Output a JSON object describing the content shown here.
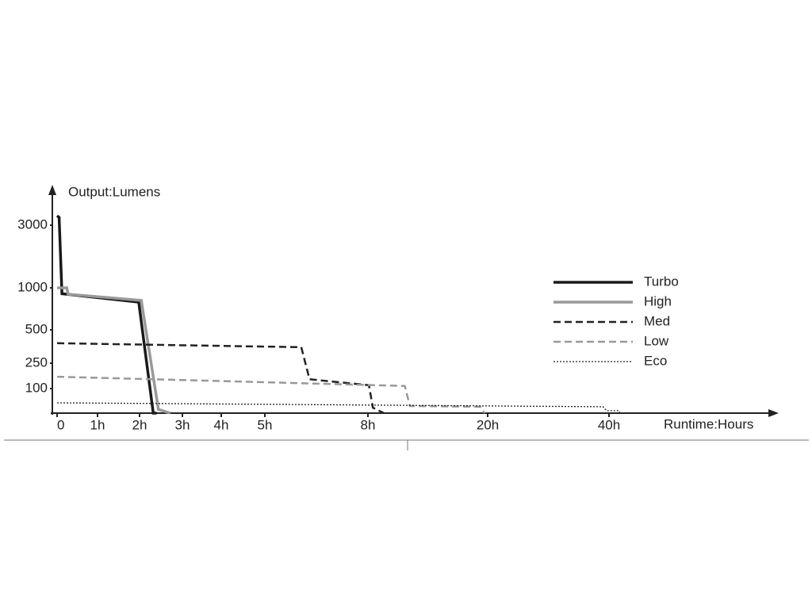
{
  "chart_data": {
    "type": "line",
    "y_label": "Output:Lumens",
    "x_label": "Runtime:Hours",
    "xlim": [
      0,
      67
    ],
    "ylim": [
      0,
      4100
    ],
    "xticks": [
      0,
      {
        "value": 1,
        "label": "1h"
      },
      {
        "value": 2,
        "label": "2h"
      },
      {
        "value": 3,
        "label": "3h"
      },
      {
        "value": 4,
        "label": "4h"
      },
      {
        "value": 5,
        "label": "5h"
      },
      {
        "value": 8,
        "label": "8h"
      },
      {
        "value": 20,
        "label": "20h"
      },
      {
        "value": 40,
        "label": "40h"
      }
    ],
    "yticks": [
      100,
      250,
      500,
      1000,
      3000
    ],
    "legend": "right",
    "series": [
      {
        "name": "Turbo",
        "color": "#1a1a1a",
        "dash": "solid",
        "x": [
          0,
          0.05,
          0.12,
          1.98,
          2.32,
          2.4
        ],
        "values": [
          3300,
          3250,
          930,
          830,
          0,
          0
        ]
      },
      {
        "name": "High",
        "color": "#999999",
        "dash": "solid",
        "x": [
          0,
          0.24,
          0.27,
          2.04,
          2.44,
          2.72
        ],
        "values": [
          1000,
          1000,
          925,
          850,
          15,
          0
        ]
      },
      {
        "name": "Med",
        "color": "#222222",
        "dash": "dashed",
        "x": [
          0,
          6.06,
          6.3,
          8.1,
          8.5,
          9.6
        ],
        "values": [
          400,
          370,
          155,
          120,
          22,
          0
        ]
      },
      {
        "name": "Low",
        "color": "#999999",
        "dash": "dashed",
        "x": [
          0,
          11.7,
          12.2,
          19.3,
          19.7
        ],
        "values": [
          170,
          115,
          29,
          26,
          0
        ]
      },
      {
        "name": "Eco",
        "color": "#222222",
        "dash": "dotted",
        "x": [
          0,
          39,
          39.6,
          41.6,
          41.8
        ],
        "values": [
          42,
          26,
          10,
          10,
          0
        ]
      }
    ]
  }
}
